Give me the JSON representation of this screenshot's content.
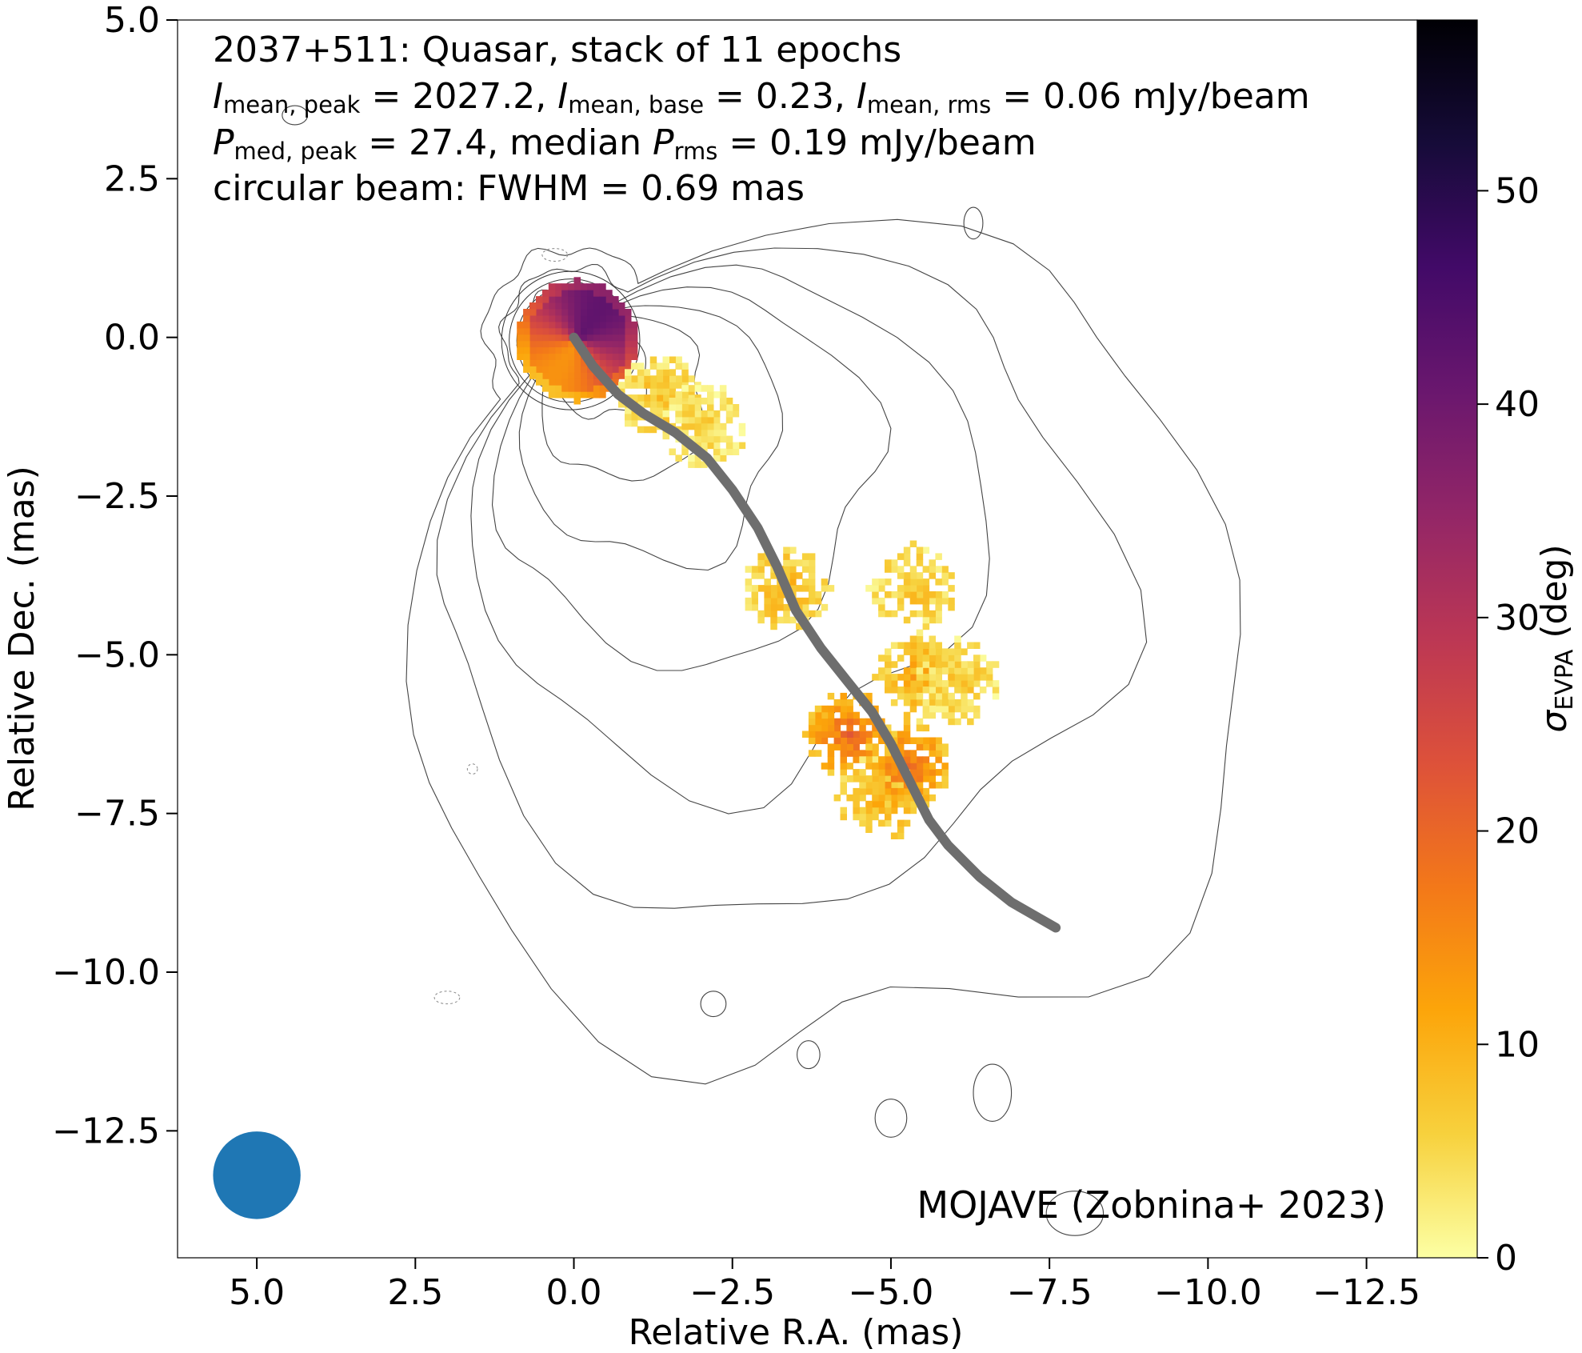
{
  "chart_data": {
    "type": "heatmap",
    "title_lines": [
      "2037+511: Quasar, stack of 11 epochs",
      "I_mean,peak = 2027.2, I_mean,base = 0.23, I_mean,rms = 0.06 mJy/beam",
      "P_med,peak = 27.4, median P_rms = 0.19 mJy/beam",
      "circular beam: FWHM = 0.69 mas"
    ],
    "title_runs": [
      [
        {
          "t": "2037+511: Quasar, stack of 11 epochs"
        }
      ],
      [
        {
          "t": "I",
          "i": true
        },
        {
          "t": "mean, peak",
          "sub": true
        },
        {
          "t": " = 2027.2, "
        },
        {
          "t": "I",
          "i": true
        },
        {
          "t": "mean, base",
          "sub": true
        },
        {
          "t": " = 0.23, "
        },
        {
          "t": "I",
          "i": true
        },
        {
          "t": "mean, rms",
          "sub": true
        },
        {
          "t": " = 0.06 mJy/beam"
        }
      ],
      [
        {
          "t": "P",
          "i": true
        },
        {
          "t": "med, peak",
          "sub": true
        },
        {
          "t": " = 27.4, median "
        },
        {
          "t": "P",
          "i": true
        },
        {
          "t": "rms",
          "sub": true
        },
        {
          "t": " = 0.19 mJy/beam"
        }
      ],
      [
        {
          "t": "circular beam: FWHM = 0.69 mas"
        }
      ]
    ],
    "credit": "MOJAVE (Zobnina+ 2023)",
    "xlabel": "Relative R.A. (mas)",
    "ylabel": "Relative Dec. (mas)",
    "colorbar_label_symbol": "σ",
    "colorbar_label_sub": "EVPA",
    "colorbar_label_unit": " (deg)",
    "xlim": [
      6.25,
      -13.3
    ],
    "ylim": [
      -14.5,
      5.0
    ],
    "xticks": [
      5.0,
      2.5,
      0.0,
      -2.5,
      -5.0,
      -7.5,
      -10.0,
      -12.5
    ],
    "xtick_labels": [
      "5.0",
      "2.5",
      "0.0",
      "−2.5",
      "−5.0",
      "−7.5",
      "−10.0",
      "−12.5"
    ],
    "yticks": [
      5.0,
      2.5,
      0.0,
      -2.5,
      -5.0,
      -7.5,
      -10.0,
      -12.5
    ],
    "ytick_labels": [
      "5.0",
      "2.5",
      "0.0",
      "−2.5",
      "−5.0",
      "−7.5",
      "−10.0",
      "−12.5"
    ],
    "colorbar_range": [
      0,
      58
    ],
    "colorbar_ticks": [
      0,
      10,
      20,
      30,
      40,
      50
    ],
    "colorbar_tick_labels": [
      "0",
      "10",
      "20",
      "30",
      "40",
      "50"
    ],
    "colormap": "inferno_r",
    "colormap_stops": [
      "#fcffa4",
      "#f7d13d",
      "#fca50a",
      "#f37819",
      "#dd513a",
      "#bc3754",
      "#932667",
      "#6a176e",
      "#420a68",
      "#160b39",
      "#000004"
    ],
    "beam": {
      "x": 5.0,
      "y": -13.2,
      "fwhm": 0.69,
      "color": "#1f77b4"
    },
    "ridgeline": {
      "color": "#6e6e6e",
      "points": [
        [
          0.0,
          0.0
        ],
        [
          -0.3,
          -0.45
        ],
        [
          -0.7,
          -0.9
        ],
        [
          -1.1,
          -1.2
        ],
        [
          -1.6,
          -1.5
        ],
        [
          -2.1,
          -1.9
        ],
        [
          -2.5,
          -2.4
        ],
        [
          -2.9,
          -3.0
        ],
        [
          -3.2,
          -3.6
        ],
        [
          -3.5,
          -4.3
        ],
        [
          -3.9,
          -4.9
        ],
        [
          -4.3,
          -5.4
        ],
        [
          -4.7,
          -5.9
        ],
        [
          -5.0,
          -6.4
        ],
        [
          -5.3,
          -7.0
        ],
        [
          -5.6,
          -7.6
        ],
        [
          -5.9,
          -8.0
        ],
        [
          -6.4,
          -8.5
        ],
        [
          -6.9,
          -8.9
        ],
        [
          -7.6,
          -9.3
        ]
      ]
    },
    "contour_levels": 9,
    "core_sigma": 28,
    "polarization_patches": [
      {
        "x": -1.3,
        "y": -0.9,
        "sigma": 8
      },
      {
        "x": -2.0,
        "y": -1.35,
        "sigma": 6
      },
      {
        "x": -3.3,
        "y": -3.9,
        "sigma": 10
      },
      {
        "x": -5.3,
        "y": -3.9,
        "sigma": 8
      },
      {
        "x": -4.3,
        "y": -6.2,
        "sigma": 20
      },
      {
        "x": -5.4,
        "y": -5.3,
        "sigma": 12
      },
      {
        "x": -4.8,
        "y": -7.2,
        "sigma": 11
      },
      {
        "x": -5.2,
        "y": -6.7,
        "sigma": 19
      },
      {
        "x": -6.0,
        "y": -5.4,
        "sigma": 7
      }
    ]
  }
}
